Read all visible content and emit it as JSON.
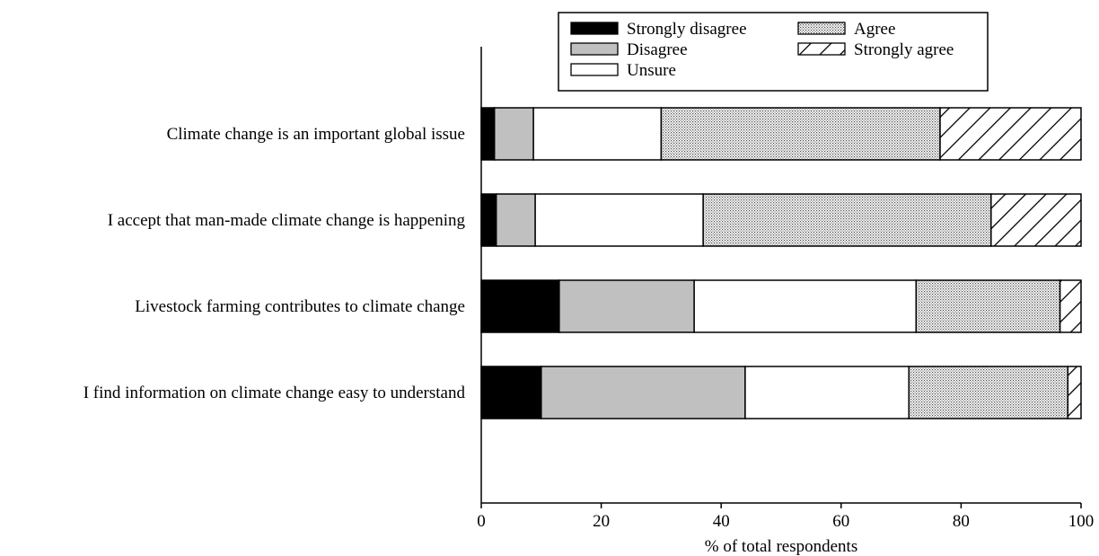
{
  "chart_data": {
    "type": "bar",
    "orientation": "horizontal",
    "stacked": true,
    "title": "",
    "xlabel": "% of total respondents",
    "ylabel": "",
    "xlim": [
      0,
      100
    ],
    "xticks": [
      "0",
      "20",
      "40",
      "60",
      "80",
      "100"
    ],
    "grid": false,
    "legend_position": "top-right",
    "categories": [
      "Climate change is an important global issue",
      "I accept that man-made climate change is happening",
      "Livestock farming contributes to climate change",
      "I find information on climate change easy to understand"
    ],
    "series": [
      {
        "name": "Strongly disagree",
        "fill": "solid-black",
        "values": [
          2.2,
          2.5,
          13.0,
          10.0
        ]
      },
      {
        "name": "Disagree",
        "fill": "solid-gray",
        "values": [
          6.5,
          6.5,
          22.5,
          34.0
        ]
      },
      {
        "name": "Unsure",
        "fill": "white",
        "values": [
          21.3,
          28.0,
          37.0,
          27.3
        ]
      },
      {
        "name": "Agree",
        "fill": "dotted",
        "values": [
          46.5,
          48.0,
          24.0,
          26.5
        ]
      },
      {
        "name": "Strongly agree",
        "fill": "diagonal-hatch",
        "values": [
          23.5,
          15.0,
          3.5,
          2.2
        ]
      }
    ],
    "colors": {
      "black": "#000000",
      "gray": "#c0c0c0",
      "white": "#ffffff",
      "dot": "#555555"
    }
  }
}
